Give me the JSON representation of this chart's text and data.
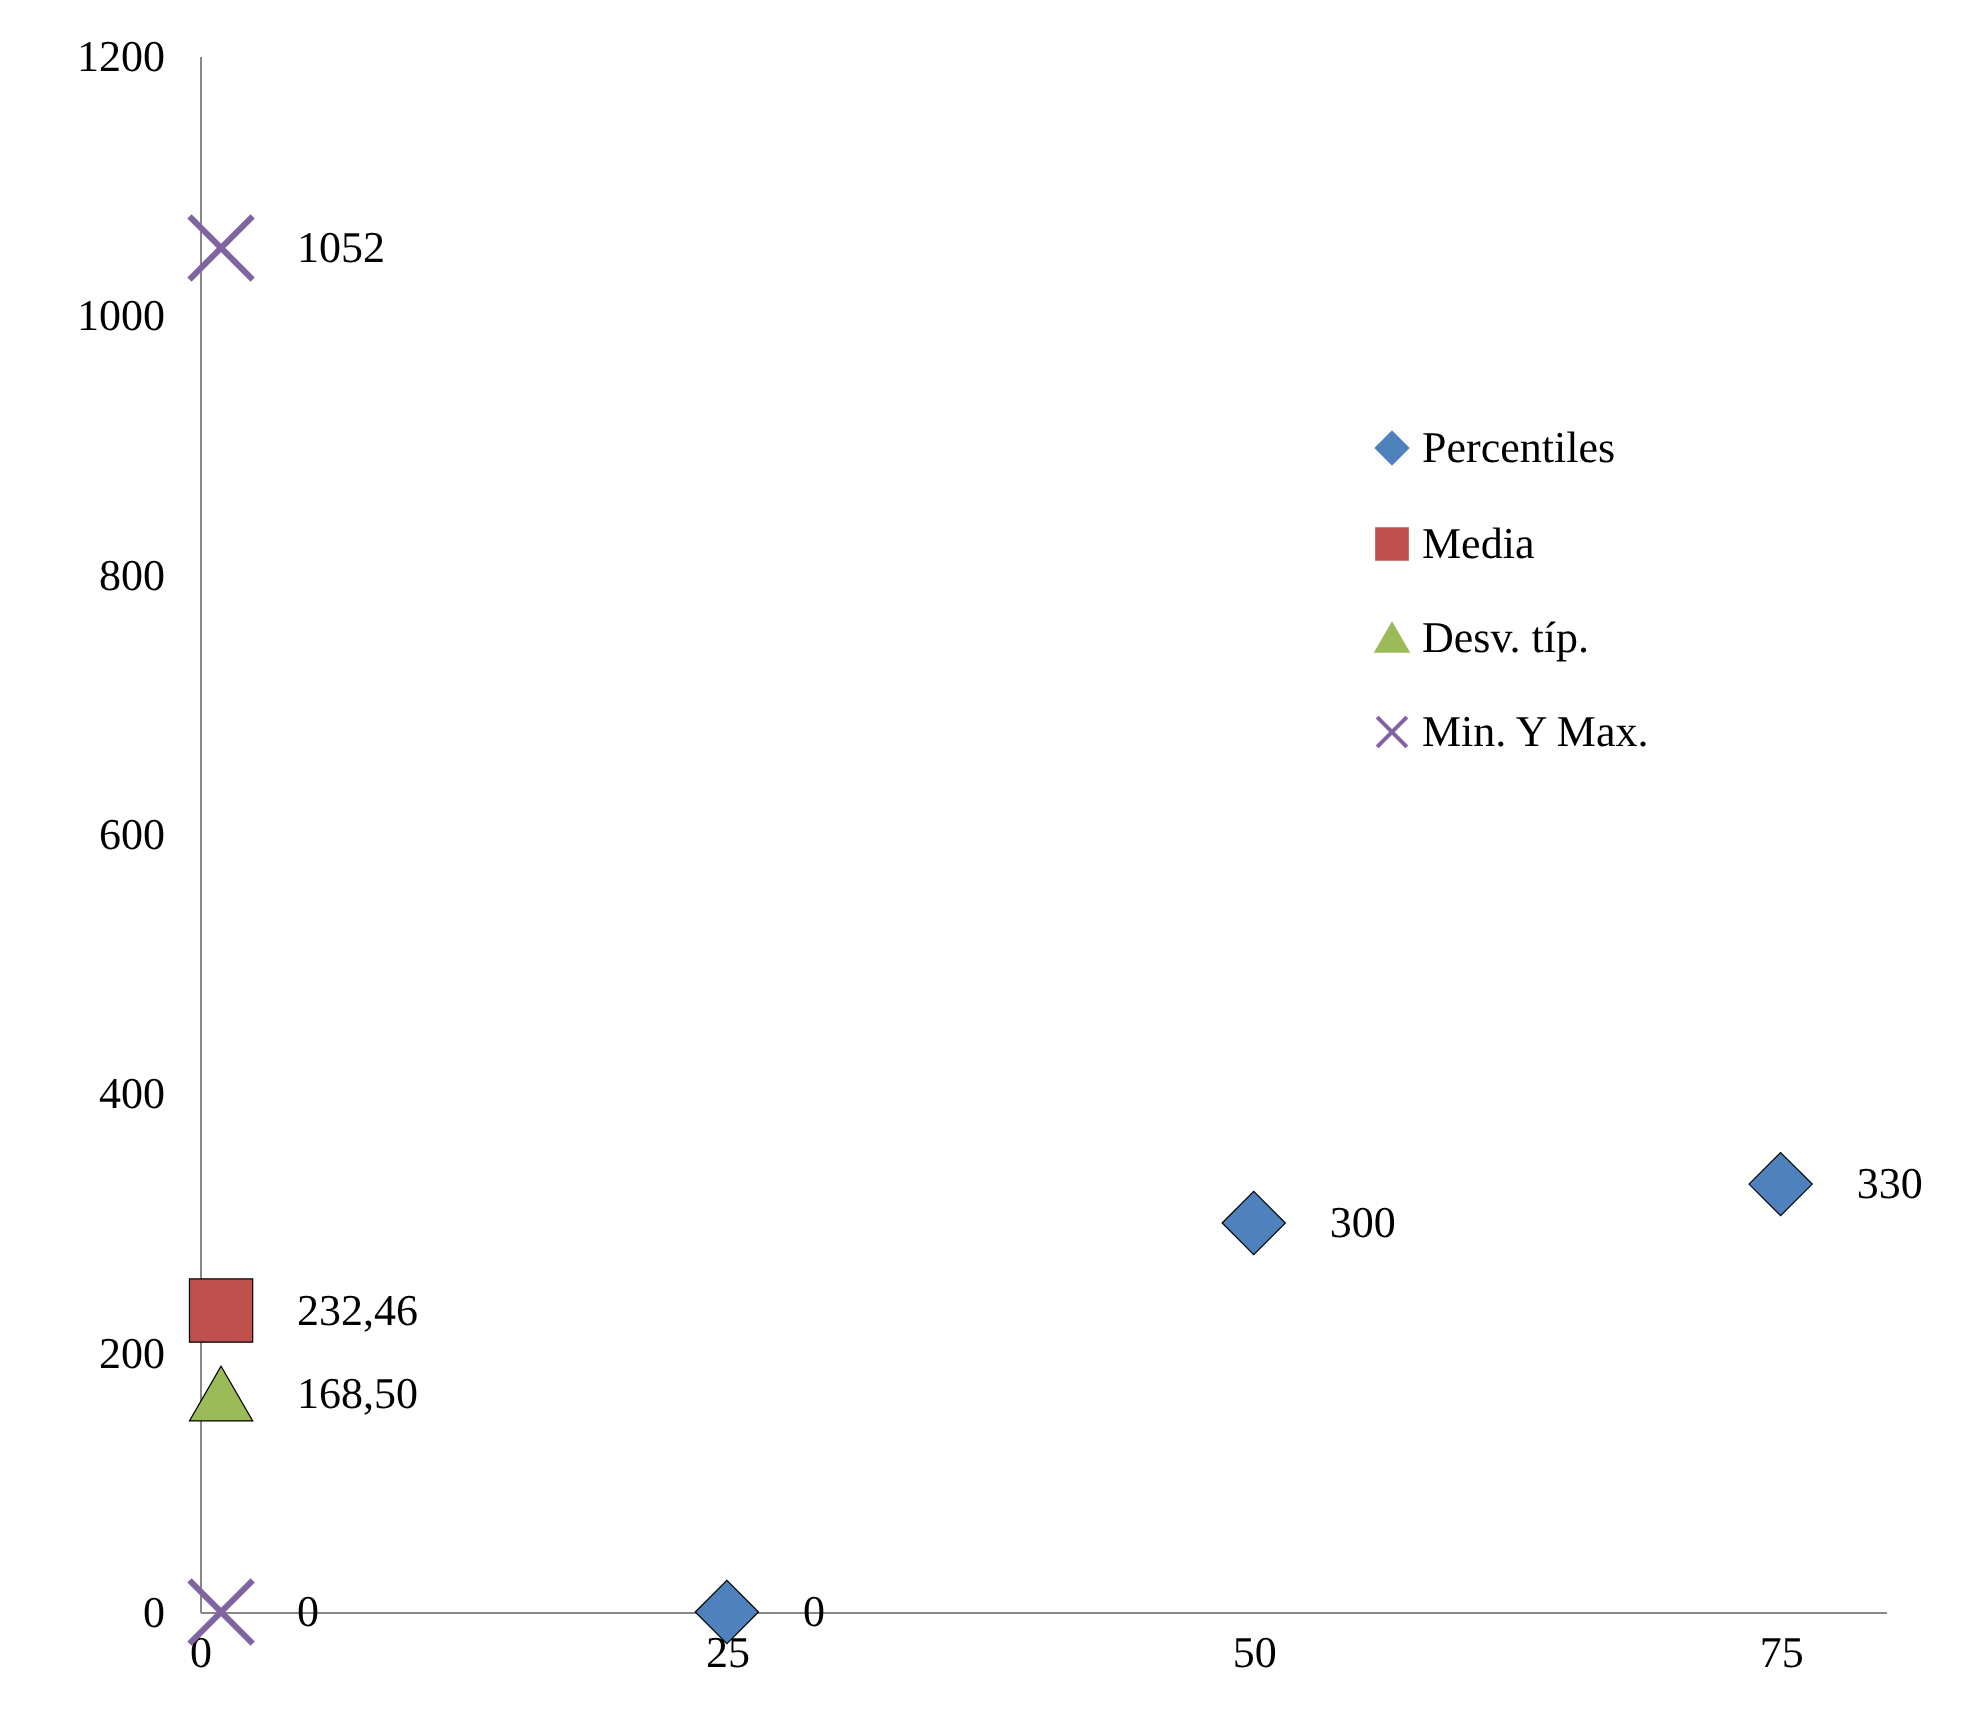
{
  "chart_data": {
    "type": "scatter",
    "xlim": [
      0,
      80
    ],
    "xticks": [
      0,
      25,
      50,
      75
    ],
    "ylim": [
      0,
      1200
    ],
    "yticks": [
      0,
      200,
      400,
      600,
      800,
      1000,
      1200
    ],
    "grid": false,
    "legend": "right",
    "series": [
      {
        "name": "Percentiles",
        "color": "#4f81bd",
        "marker": "diamond",
        "x": [
          25,
          50,
          75
        ],
        "values": [
          0,
          300,
          330
        ],
        "value_labels": [
          "0",
          "300",
          "330"
        ]
      },
      {
        "name": "Media",
        "color": "#c0504d",
        "marker": "square",
        "x": [
          1
        ],
        "values": [
          232.46
        ],
        "value_labels": [
          "232,46"
        ]
      },
      {
        "name": "Desv. típ.",
        "color": "#9bbb59",
        "marker": "triangle",
        "x": [
          1
        ],
        "values": [
          168.5
        ],
        "value_labels": [
          "168,50"
        ]
      },
      {
        "name": "Min. Y Max.",
        "color": "#8064a2",
        "marker": "cross",
        "x": [
          1,
          1
        ],
        "values": [
          0,
          1052
        ],
        "value_labels": [
          "0",
          "1052"
        ]
      }
    ]
  }
}
